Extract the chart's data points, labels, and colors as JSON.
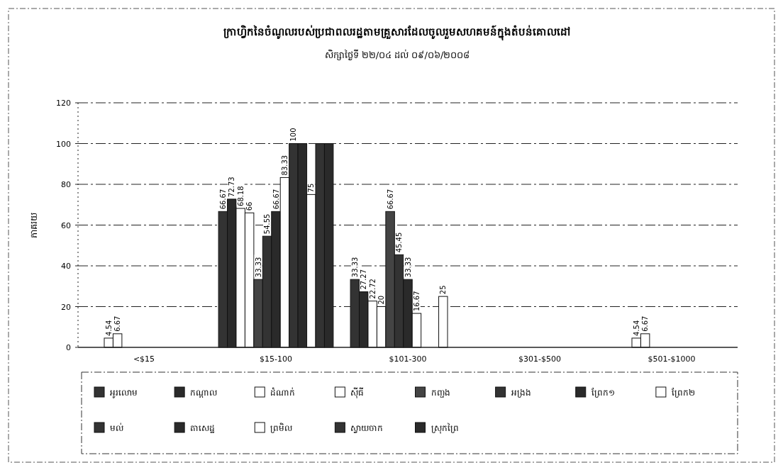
{
  "chart_data": {
    "type": "bar",
    "title": "ក្រាហ្វិកនៃចំណូលរបស់ប្រជាពលរដ្ឋតាមគ្រួសារដែលចូលរួមសហគមន៍ក្នុងតំបន់គោលដៅ",
    "subtitle": "សិក្សាថ្ងៃទី ២២/០៤ ដល់ ០៩/០៦/២០០៨",
    "ylabel": "ភាគរយ",
    "categories": [
      "<$15",
      "$15-100",
      "$101-300",
      "$301-$500",
      "$501-$1000"
    ],
    "ylim": [
      0,
      120
    ],
    "yticks": [
      0,
      20,
      40,
      60,
      80,
      100,
      120
    ],
    "grid": "y",
    "legend": "bottom",
    "series": [
      {
        "name": "អូរលោម",
        "color": "#333333",
        "values": [
          0,
          66.67,
          33.33,
          0,
          0
        ],
        "value_labels": [
          null,
          "66.67",
          "33.33",
          null,
          null
        ]
      },
      {
        "name": "កណ្ដាល",
        "color": "#2a2a2a",
        "values": [
          0,
          72.73,
          27.27,
          0,
          0
        ],
        "value_labels": [
          null,
          "72.73",
          "27.27",
          null,
          null
        ]
      },
      {
        "name": "ដំណាក់",
        "color": "#ffffff",
        "values": [
          4.54,
          68.18,
          22.72,
          0,
          4.54
        ],
        "value_labels": [
          "4.54",
          "68.18",
          "22.72",
          null,
          "4.54"
        ]
      },
      {
        "name": "ស៊ីធី",
        "color": "#ffffff",
        "values": [
          6.67,
          66,
          20,
          0,
          6.67
        ],
        "value_labels": [
          "6.67",
          "66",
          "20",
          null,
          "6.67"
        ]
      },
      {
        "name": "កញ្ជង",
        "color": "#444444",
        "values": [
          0,
          33.33,
          66.67,
          0,
          0
        ],
        "value_labels": [
          null,
          "33.33",
          "66.67",
          null,
          null
        ]
      },
      {
        "name": "អង្រង",
        "color": "#333333",
        "values": [
          0,
          54.55,
          45.45,
          0,
          0
        ],
        "value_labels": [
          null,
          "54.55",
          "45.45",
          null,
          null
        ]
      },
      {
        "name": "ព្រែក១",
        "color": "#2a2a2a",
        "values": [
          0,
          66.67,
          33.33,
          0,
          0
        ],
        "value_labels": [
          null,
          "66.67",
          "33.33",
          null,
          null
        ]
      },
      {
        "name": "ព្រែក២",
        "color": "#ffffff",
        "values": [
          0,
          83.33,
          16.67,
          0,
          0
        ],
        "value_labels": [
          null,
          "83.33",
          "16.67",
          null,
          null
        ]
      },
      {
        "name": "មល់",
        "color": "#333333",
        "values": [
          0,
          100,
          0,
          0,
          0
        ],
        "value_labels": [
          null,
          "100",
          null,
          null,
          null
        ]
      },
      {
        "name": "តាសេដ្ឋ",
        "color": "#2a2a2a",
        "values": [
          0,
          100,
          0,
          0,
          0
        ],
        "value_labels": [
          null,
          null,
          null,
          null,
          null
        ]
      },
      {
        "name": "ព្រមិល",
        "color": "#ffffff",
        "values": [
          0,
          75,
          25,
          0,
          0
        ],
        "value_labels": [
          null,
          "75",
          "25",
          null,
          null
        ]
      },
      {
        "name": "ស្វាយចាក",
        "color": "#333333",
        "values": [
          0,
          100,
          0,
          0,
          0
        ],
        "value_labels": [
          null,
          null,
          null,
          null,
          null
        ]
      },
      {
        "name": "ស្រុកព្រៃ",
        "color": "#2a2a2a",
        "values": [
          0,
          100,
          0,
          0,
          0
        ],
        "value_labels": [
          null,
          null,
          null,
          null,
          null
        ]
      }
    ]
  }
}
